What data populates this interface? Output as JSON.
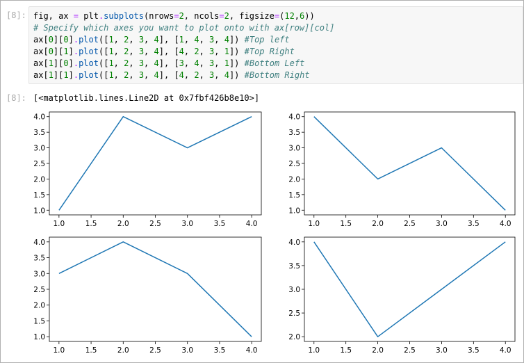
{
  "input_prompt": "[8]:",
  "output_prompt": "[8]:",
  "code": [
    [
      {
        "t": "fig, ax ",
        "c": ""
      },
      {
        "t": "=",
        "c": "op"
      },
      {
        "t": " plt",
        "c": ""
      },
      {
        "t": ".",
        "c": "op"
      },
      {
        "t": "subplots",
        "c": "fn"
      },
      {
        "t": "(nrows",
        "c": ""
      },
      {
        "t": "=",
        "c": "op"
      },
      {
        "t": "2",
        "c": "num"
      },
      {
        "t": ", ncols",
        "c": ""
      },
      {
        "t": "=",
        "c": "op"
      },
      {
        "t": "2",
        "c": "num"
      },
      {
        "t": ", figsize",
        "c": ""
      },
      {
        "t": "=",
        "c": "op"
      },
      {
        "t": "(",
        "c": ""
      },
      {
        "t": "12",
        "c": "num"
      },
      {
        "t": ",",
        "c": ""
      },
      {
        "t": "6",
        "c": "num"
      },
      {
        "t": "))",
        "c": ""
      }
    ],
    [
      {
        "t": "# Specify which axes you want to plot onto with ax[row][col]",
        "c": "cm"
      }
    ],
    [
      {
        "t": "ax[",
        "c": ""
      },
      {
        "t": "0",
        "c": "num"
      },
      {
        "t": "][",
        "c": ""
      },
      {
        "t": "0",
        "c": "num"
      },
      {
        "t": "]",
        "c": ""
      },
      {
        "t": ".",
        "c": "op"
      },
      {
        "t": "plot",
        "c": "fn"
      },
      {
        "t": "([",
        "c": ""
      },
      {
        "t": "1",
        "c": "num"
      },
      {
        "t": ", ",
        "c": ""
      },
      {
        "t": "2",
        "c": "num"
      },
      {
        "t": ", ",
        "c": ""
      },
      {
        "t": "3",
        "c": "num"
      },
      {
        "t": ", ",
        "c": ""
      },
      {
        "t": "4",
        "c": "num"
      },
      {
        "t": "], [",
        "c": ""
      },
      {
        "t": "1",
        "c": "num"
      },
      {
        "t": ", ",
        "c": ""
      },
      {
        "t": "4",
        "c": "num"
      },
      {
        "t": ", ",
        "c": ""
      },
      {
        "t": "3",
        "c": "num"
      },
      {
        "t": ", ",
        "c": ""
      },
      {
        "t": "4",
        "c": "num"
      },
      {
        "t": "]) ",
        "c": ""
      },
      {
        "t": "#Top left",
        "c": "cm"
      }
    ],
    [
      {
        "t": "ax[",
        "c": ""
      },
      {
        "t": "0",
        "c": "num"
      },
      {
        "t": "][",
        "c": ""
      },
      {
        "t": "1",
        "c": "num"
      },
      {
        "t": "]",
        "c": ""
      },
      {
        "t": ".",
        "c": "op"
      },
      {
        "t": "plot",
        "c": "fn"
      },
      {
        "t": "([",
        "c": ""
      },
      {
        "t": "1",
        "c": "num"
      },
      {
        "t": ", ",
        "c": ""
      },
      {
        "t": "2",
        "c": "num"
      },
      {
        "t": ", ",
        "c": ""
      },
      {
        "t": "3",
        "c": "num"
      },
      {
        "t": ", ",
        "c": ""
      },
      {
        "t": "4",
        "c": "num"
      },
      {
        "t": "], [",
        "c": ""
      },
      {
        "t": "4",
        "c": "num"
      },
      {
        "t": ", ",
        "c": ""
      },
      {
        "t": "2",
        "c": "num"
      },
      {
        "t": ", ",
        "c": ""
      },
      {
        "t": "3",
        "c": "num"
      },
      {
        "t": ", ",
        "c": ""
      },
      {
        "t": "1",
        "c": "num"
      },
      {
        "t": "]) ",
        "c": ""
      },
      {
        "t": "#Top Right",
        "c": "cm"
      }
    ],
    [
      {
        "t": "ax[",
        "c": ""
      },
      {
        "t": "1",
        "c": "num"
      },
      {
        "t": "][",
        "c": ""
      },
      {
        "t": "0",
        "c": "num"
      },
      {
        "t": "]",
        "c": ""
      },
      {
        "t": ".",
        "c": "op"
      },
      {
        "t": "plot",
        "c": "fn"
      },
      {
        "t": "([",
        "c": ""
      },
      {
        "t": "1",
        "c": "num"
      },
      {
        "t": ", ",
        "c": ""
      },
      {
        "t": "2",
        "c": "num"
      },
      {
        "t": ", ",
        "c": ""
      },
      {
        "t": "3",
        "c": "num"
      },
      {
        "t": ", ",
        "c": ""
      },
      {
        "t": "4",
        "c": "num"
      },
      {
        "t": "], [",
        "c": ""
      },
      {
        "t": "3",
        "c": "num"
      },
      {
        "t": ", ",
        "c": ""
      },
      {
        "t": "4",
        "c": "num"
      },
      {
        "t": ", ",
        "c": ""
      },
      {
        "t": "3",
        "c": "num"
      },
      {
        "t": ", ",
        "c": ""
      },
      {
        "t": "1",
        "c": "num"
      },
      {
        "t": "]) ",
        "c": ""
      },
      {
        "t": "#Bottom Left",
        "c": "cm"
      }
    ],
    [
      {
        "t": "ax[",
        "c": ""
      },
      {
        "t": "1",
        "c": "num"
      },
      {
        "t": "][",
        "c": ""
      },
      {
        "t": "1",
        "c": "num"
      },
      {
        "t": "]",
        "c": ""
      },
      {
        "t": ".",
        "c": "op"
      },
      {
        "t": "plot",
        "c": "fn"
      },
      {
        "t": "([",
        "c": ""
      },
      {
        "t": "1",
        "c": "num"
      },
      {
        "t": ", ",
        "c": ""
      },
      {
        "t": "2",
        "c": "num"
      },
      {
        "t": ", ",
        "c": ""
      },
      {
        "t": "3",
        "c": "num"
      },
      {
        "t": ", ",
        "c": ""
      },
      {
        "t": "4",
        "c": "num"
      },
      {
        "t": "], [",
        "c": ""
      },
      {
        "t": "4",
        "c": "num"
      },
      {
        "t": ", ",
        "c": ""
      },
      {
        "t": "2",
        "c": "num"
      },
      {
        "t": ", ",
        "c": ""
      },
      {
        "t": "3",
        "c": "num"
      },
      {
        "t": ", ",
        "c": ""
      },
      {
        "t": "4",
        "c": "num"
      },
      {
        "t": "]) ",
        "c": ""
      },
      {
        "t": "#Bottom Right",
        "c": "cm"
      }
    ]
  ],
  "output_text": "[<matplotlib.lines.Line2D at 0x7fbf426b8e10>]",
  "line_color": "#1f77b4",
  "chart_data": [
    {
      "type": "line",
      "x": [
        1,
        2,
        3,
        4
      ],
      "series": [
        {
          "values": [
            1,
            4,
            3,
            4
          ]
        }
      ],
      "xticks": [
        "1.0",
        "1.5",
        "2.0",
        "2.5",
        "3.0",
        "3.5",
        "4.0"
      ],
      "yticks": [
        "1.0",
        "1.5",
        "2.0",
        "2.5",
        "3.0",
        "3.5",
        "4.0"
      ],
      "xlim": [
        0.85,
        4.15
      ],
      "ylim": [
        0.85,
        4.15
      ],
      "grid": false
    },
    {
      "type": "line",
      "x": [
        1,
        2,
        3,
        4
      ],
      "series": [
        {
          "values": [
            4,
            2,
            3,
            1
          ]
        }
      ],
      "xticks": [
        "1.0",
        "1.5",
        "2.0",
        "2.5",
        "3.0",
        "3.5",
        "4.0"
      ],
      "yticks": [
        "1.0",
        "1.5",
        "2.0",
        "2.5",
        "3.0",
        "3.5",
        "4.0"
      ],
      "xlim": [
        0.85,
        4.15
      ],
      "ylim": [
        0.85,
        4.15
      ],
      "grid": false
    },
    {
      "type": "line",
      "x": [
        1,
        2,
        3,
        4
      ],
      "series": [
        {
          "values": [
            3,
            4,
            3,
            1
          ]
        }
      ],
      "xticks": [
        "1.0",
        "1.5",
        "2.0",
        "2.5",
        "3.0",
        "3.5",
        "4.0"
      ],
      "yticks": [
        "1.0",
        "1.5",
        "2.0",
        "2.5",
        "3.0",
        "3.5",
        "4.0"
      ],
      "xlim": [
        0.85,
        4.15
      ],
      "ylim": [
        0.85,
        4.15
      ],
      "grid": false
    },
    {
      "type": "line",
      "x": [
        1,
        2,
        3,
        4
      ],
      "series": [
        {
          "values": [
            4,
            2,
            3,
            4
          ]
        }
      ],
      "xticks": [
        "1.0",
        "1.5",
        "2.0",
        "2.5",
        "3.0",
        "3.5",
        "4.0"
      ],
      "yticks": [
        "2.0",
        "2.5",
        "3.0",
        "3.5",
        "4.0"
      ],
      "xlim": [
        0.85,
        4.15
      ],
      "ylim": [
        1.9,
        4.1
      ],
      "grid": false
    }
  ]
}
